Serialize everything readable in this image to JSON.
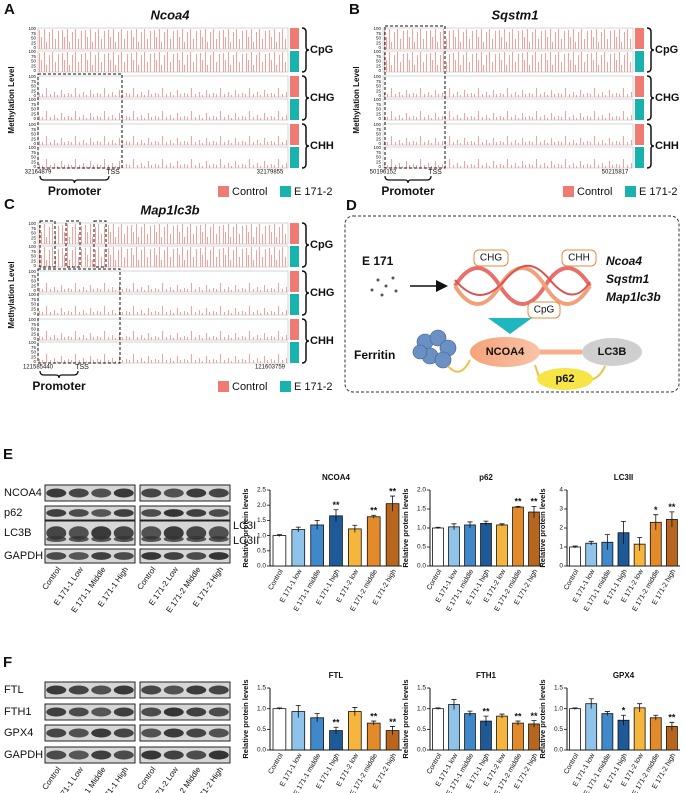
{
  "genome_panels": [
    {
      "letter": "A",
      "gene": "Ncoa4",
      "y_label": "Methylation Level",
      "track_ticks": [
        100,
        75,
        50,
        25,
        0
      ],
      "contexts": [
        "CpG",
        "CHG",
        "CHH"
      ],
      "start": "32164879",
      "end": "32179855",
      "tss": "TSS",
      "promoter": "Promoter",
      "legend": [
        {
          "name": "Control",
          "color": "#f07b72"
        },
        {
          "name": "E 171-2",
          "color": "#19b3ad"
        }
      ]
    },
    {
      "letter": "B",
      "gene": "Sqstm1",
      "y_label": "Methylation Level",
      "track_ticks": [
        100,
        75,
        50,
        25,
        0
      ],
      "contexts": [
        "CpG",
        "CHG",
        "CHH"
      ],
      "start": "50196152",
      "end": "50215817",
      "tss": "TSS",
      "promoter": "Promoter",
      "legend": [
        {
          "name": "Control",
          "color": "#f07b72"
        },
        {
          "name": "E 171-2",
          "color": "#19b3ad"
        }
      ]
    },
    {
      "letter": "C",
      "gene": "Map1lc3b",
      "y_label": "Methylation Level",
      "track_ticks": [
        100,
        75,
        50,
        25,
        0
      ],
      "contexts": [
        "CpG",
        "CHG",
        "CHH"
      ],
      "start": "121585440",
      "end": "121603759",
      "tss": "TSS",
      "promoter": "Promoter",
      "legend": [
        {
          "name": "Control",
          "color": "#f07b72"
        },
        {
          "name": "E 171-2",
          "color": "#19b3ad"
        }
      ]
    }
  ],
  "diagram": {
    "letter": "D",
    "agent": "E 171",
    "contexts": [
      "CHG",
      "CHH",
      "CpG"
    ],
    "genes": [
      "Ncoa4",
      "Sqstm1",
      "Map1lc3b"
    ],
    "ferritin": "Ferritin",
    "nodes": [
      "NCOA4",
      "LC3B",
      "p62"
    ]
  },
  "blots": [
    {
      "letter": "E",
      "rows": [
        "NCOA4",
        "p62",
        "LC3B",
        "GAPDH"
      ],
      "side_labels": [
        "LC3I",
        "LC3II"
      ],
      "lanes_1": [
        "Control",
        "E 171-1 Low",
        "E 171-1 Middle",
        "E 171-1 High"
      ],
      "lanes_2": [
        "Control",
        "E 171-2 Low",
        "E 171-2 Middle",
        "E 171-2 High"
      ]
    },
    {
      "letter": "F",
      "rows": [
        "FTL",
        "FTH1",
        "GPX4",
        "GAPDH"
      ],
      "lanes_1": [
        "Control",
        "E 171-1 Low",
        "E 171-1 Middle",
        "E 171-1 High"
      ],
      "lanes_2": [
        "Control",
        "E 171-2 Low",
        "E 171-2 Middle",
        "E 171-2 High"
      ]
    }
  ],
  "chart_data": [
    {
      "type": "bar",
      "title": "NCOA4",
      "y_label": "Relative protein levels",
      "categories": [
        "Control",
        "E 171-1 low",
        "E 171-1 middle",
        "E 171-1 high",
        "E 171-2 low",
        "E 171-2 middle",
        "E 171-2 high"
      ],
      "values": [
        1.0,
        1.2,
        1.35,
        1.65,
        1.22,
        1.62,
        2.05
      ],
      "errors": [
        0.03,
        0.08,
        0.15,
        0.2,
        0.12,
        0.05,
        0.25
      ],
      "annotations": [
        null,
        null,
        null,
        "**",
        null,
        "**",
        "**"
      ],
      "colors": [
        "#ffffff",
        "#8fc3ea",
        "#3f88c9",
        "#1d5a97",
        "#f6b53c",
        "#e38b2b",
        "#b8661d"
      ],
      "ylim": [
        0,
        2.5
      ],
      "yticks": [
        {
          "value": 0,
          "label": "0.0"
        },
        0.5,
        {
          "value": 1,
          "label": "1.0"
        },
        1.5,
        {
          "value": 2,
          "label": "2.0"
        },
        2.5
      ]
    },
    {
      "type": "bar",
      "title": "p62",
      "y_label": "Relative protein levels",
      "categories": [
        "Control",
        "E 171-1 low",
        "E 171-1 middle",
        "E 171-1 high",
        "E 171-2 low",
        "E 171-2 middle",
        "E 171-2 high"
      ],
      "values": [
        1.0,
        1.03,
        1.08,
        1.12,
        1.08,
        1.55,
        1.42
      ],
      "errors": [
        0.02,
        0.08,
        0.08,
        0.06,
        0.03,
        0.02,
        0.15
      ],
      "annotations": [
        null,
        null,
        null,
        null,
        null,
        "**",
        "**"
      ],
      "colors": [
        "#ffffff",
        "#8fc3ea",
        "#3f88c9",
        "#1d5a97",
        "#f6b53c",
        "#e38b2b",
        "#b8661d"
      ],
      "ylim": [
        0,
        2
      ],
      "yticks": [
        {
          "value": 0,
          "label": "0.0"
        },
        0.5,
        {
          "value": 1,
          "label": "1.0"
        },
        1.5,
        {
          "value": 2,
          "label": "2.0"
        }
      ]
    },
    {
      "type": "bar",
      "title": "LC3II",
      "y_label": "Relative protein levels",
      "categories": [
        "Control",
        "E 171-1 low",
        "E 171-1 middle",
        "E 171-1 high",
        "E 171-2 low",
        "E 171-2 middle",
        "E 171-2 high"
      ],
      "values": [
        1.0,
        1.2,
        1.25,
        1.75,
        1.15,
        2.3,
        2.45
      ],
      "errors": [
        0.05,
        0.1,
        0.4,
        0.6,
        0.35,
        0.4,
        0.4
      ],
      "annotations": [
        null,
        null,
        null,
        null,
        null,
        "*",
        "**"
      ],
      "colors": [
        "#ffffff",
        "#8fc3ea",
        "#3f88c9",
        "#1d5a97",
        "#f6b53c",
        "#e38b2b",
        "#b8661d"
      ],
      "ylim": [
        0,
        4
      ],
      "yticks": [
        0,
        1,
        2,
        3,
        4
      ]
    },
    {
      "type": "bar",
      "title": "FTL",
      "y_label": "Relative protein levels",
      "categories": [
        "Control",
        "E 171-1 low",
        "E 171-1 middle",
        "E 171-1 high",
        "E 171-2 low",
        "E 171-2 middle",
        "E 171-2 high"
      ],
      "values": [
        1.0,
        0.93,
        0.78,
        0.47,
        0.93,
        0.65,
        0.47
      ],
      "errors": [
        0.02,
        0.15,
        0.1,
        0.08,
        0.1,
        0.05,
        0.1
      ],
      "annotations": [
        null,
        null,
        null,
        "**",
        null,
        "**",
        "**"
      ],
      "colors": [
        "#ffffff",
        "#8fc3ea",
        "#3f88c9",
        "#1d5a97",
        "#f6b53c",
        "#e38b2b",
        "#b8661d"
      ],
      "ylim": [
        0,
        1.5
      ],
      "yticks": [
        {
          "value": 0,
          "label": "0.0"
        },
        0.5,
        {
          "value": 1,
          "label": "1.0"
        },
        1.5
      ]
    },
    {
      "type": "bar",
      "title": "FTH1",
      "y_label": "Relative protein levels",
      "categories": [
        "Control",
        "E 171-1 low",
        "E 171-1 middle",
        "E 171-1 high",
        "E 171-2 low",
        "E 171-2 middle",
        "E 171-2 high"
      ],
      "values": [
        1.0,
        1.1,
        0.88,
        0.7,
        0.82,
        0.65,
        0.63
      ],
      "errors": [
        0.02,
        0.12,
        0.06,
        0.12,
        0.05,
        0.05,
        0.08
      ],
      "annotations": [
        null,
        null,
        null,
        "**",
        null,
        "**",
        "**"
      ],
      "colors": [
        "#ffffff",
        "#8fc3ea",
        "#3f88c9",
        "#1d5a97",
        "#f6b53c",
        "#e38b2b",
        "#b8661d"
      ],
      "ylim": [
        0,
        1.5
      ],
      "yticks": [
        {
          "value": 0,
          "label": "0.0"
        },
        0.5,
        {
          "value": 1,
          "label": "1.0"
        },
        1.5
      ]
    },
    {
      "type": "bar",
      "title": "GPX4",
      "y_label": "Relative protein levels",
      "categories": [
        "Control",
        "E 171-1 low",
        "E 171-1 middle",
        "E 171-1 high",
        "E 171-2 low",
        "E 171-2 middle",
        "E 171-2 high"
      ],
      "values": [
        1.0,
        1.12,
        0.88,
        0.72,
        1.02,
        0.78,
        0.57
      ],
      "errors": [
        0.02,
        0.12,
        0.05,
        0.12,
        0.1,
        0.06,
        0.1
      ],
      "annotations": [
        null,
        null,
        null,
        "*",
        null,
        null,
        "**"
      ],
      "colors": [
        "#ffffff",
        "#8fc3ea",
        "#3f88c9",
        "#1d5a97",
        "#f6b53c",
        "#e38b2b",
        "#b8661d"
      ],
      "ylim": [
        0,
        1.5
      ],
      "yticks": [
        {
          "value": 0,
          "label": "0.0"
        },
        0.5,
        {
          "value": 1,
          "label": "1.0"
        },
        1.5
      ]
    }
  ]
}
